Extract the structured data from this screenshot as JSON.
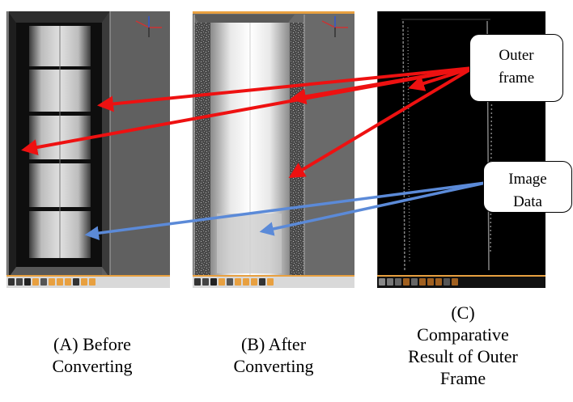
{
  "panels": [
    {
      "id": "A",
      "caption": "(A) Before\nConverting"
    },
    {
      "id": "B",
      "caption": "(B) After\nConverting"
    },
    {
      "id": "C",
      "caption": "(C)\nComparative\nResult of Outer\nFrame"
    }
  ],
  "callouts": {
    "outer_frame": "Outer\nframe",
    "image_data": "Image\nData"
  },
  "colors": {
    "outer_frame_arrow": "#ee1111",
    "image_data_arrow": "#5b8ad8",
    "toolbar_accent": "#e8a040"
  },
  "icons": [
    "axis-gizmo-icon",
    "toolbar-icons"
  ]
}
